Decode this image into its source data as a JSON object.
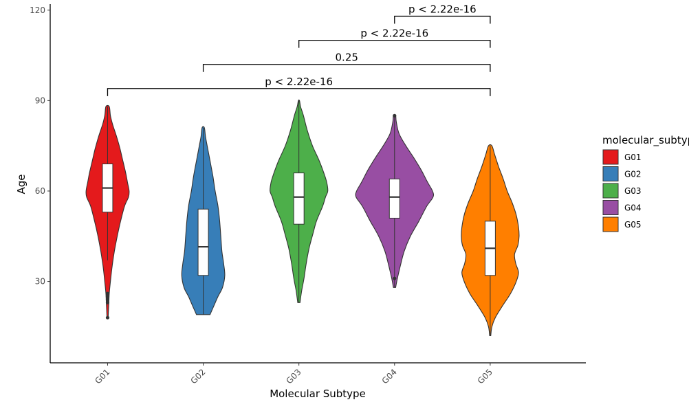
{
  "chart_data": {
    "type": "violin",
    "xlabel": "Molecular Subtype",
    "ylabel": "Age",
    "ylim": [
      3,
      122
    ],
    "yticks": [
      30,
      60,
      90,
      120
    ],
    "grid": false,
    "legend_position": "right",
    "legend_title": "molecular_subtype",
    "categories": [
      "G01",
      "G02",
      "G03",
      "G04",
      "G05"
    ],
    "groups": [
      {
        "name": "G01",
        "color": "#E41A1C",
        "min": 18,
        "max": 88,
        "box": {
          "q1": 53,
          "median": 61,
          "q3": 69
        },
        "whisker": [
          37,
          88
        ],
        "outliers": [
          18,
          23,
          24,
          25,
          26
        ],
        "density": [
          [
            18,
            1
          ],
          [
            22,
            2
          ],
          [
            26,
            3
          ],
          [
            30,
            5
          ],
          [
            35,
            8
          ],
          [
            40,
            12
          ],
          [
            45,
            17
          ],
          [
            50,
            23
          ],
          [
            55,
            30
          ],
          [
            58,
            37
          ],
          [
            60,
            38
          ],
          [
            63,
            35
          ],
          [
            66,
            32
          ],
          [
            70,
            27
          ],
          [
            74,
            22
          ],
          [
            78,
            16
          ],
          [
            82,
            9
          ],
          [
            85,
            5
          ],
          [
            88,
            3
          ]
        ]
      },
      {
        "name": "G02",
        "color": "#377EB8",
        "min": 19,
        "max": 81,
        "box": {
          "q1": 32,
          "median": 41.5,
          "q3": 54
        },
        "whisker": [
          19,
          81
        ],
        "outliers": [],
        "density": [
          [
            19,
            12
          ],
          [
            22,
            19
          ],
          [
            25,
            26
          ],
          [
            28,
            34
          ],
          [
            32,
            38
          ],
          [
            36,
            36
          ],
          [
            40,
            33
          ],
          [
            45,
            31
          ],
          [
            50,
            29
          ],
          [
            55,
            26
          ],
          [
            60,
            21
          ],
          [
            65,
            17
          ],
          [
            70,
            12
          ],
          [
            75,
            7
          ],
          [
            78,
            4
          ],
          [
            81,
            2
          ]
        ]
      },
      {
        "name": "G03",
        "color": "#4DAF4A",
        "min": 23,
        "max": 90,
        "box": {
          "q1": 49,
          "median": 58,
          "q3": 66
        },
        "whisker": [
          23,
          90
        ],
        "outliers": [],
        "density": [
          [
            23,
            2
          ],
          [
            27,
            5
          ],
          [
            31,
            9
          ],
          [
            36,
            13
          ],
          [
            41,
            18
          ],
          [
            46,
            25
          ],
          [
            50,
            31
          ],
          [
            55,
            42
          ],
          [
            58,
            47
          ],
          [
            60,
            51
          ],
          [
            63,
            49
          ],
          [
            66,
            44
          ],
          [
            70,
            36
          ],
          [
            75,
            24
          ],
          [
            80,
            15
          ],
          [
            85,
            8
          ],
          [
            88,
            3
          ],
          [
            90,
            1
          ]
        ]
      },
      {
        "name": "G04",
        "color": "#984EA3",
        "min": 28,
        "max": 85,
        "box": {
          "q1": 51,
          "median": 58,
          "q3": 64
        },
        "whisker": [
          28,
          85
        ],
        "outliers": [
          31,
          85
        ],
        "density": [
          [
            28,
            2
          ],
          [
            31,
            5
          ],
          [
            35,
            10
          ],
          [
            40,
            17
          ],
          [
            45,
            28
          ],
          [
            50,
            43
          ],
          [
            55,
            57
          ],
          [
            58,
            68
          ],
          [
            60,
            67
          ],
          [
            63,
            58
          ],
          [
            67,
            47
          ],
          [
            71,
            34
          ],
          [
            75,
            20
          ],
          [
            79,
            8
          ],
          [
            83,
            3
          ],
          [
            85,
            2
          ]
        ]
      },
      {
        "name": "G05",
        "color": "#FF7F00",
        "min": 12,
        "max": 75,
        "box": {
          "q1": 32,
          "median": 41,
          "q3": 50
        },
        "whisker": [
          12,
          75
        ],
        "outliers": [],
        "density": [
          [
            12,
            1
          ],
          [
            15,
            3
          ],
          [
            18,
            9
          ],
          [
            22,
            22
          ],
          [
            26,
            36
          ],
          [
            30,
            46
          ],
          [
            33,
            50
          ],
          [
            36,
            45
          ],
          [
            39,
            43
          ],
          [
            42,
            49
          ],
          [
            45,
            51
          ],
          [
            48,
            50
          ],
          [
            52,
            46
          ],
          [
            56,
            39
          ],
          [
            60,
            30
          ],
          [
            64,
            23
          ],
          [
            68,
            15
          ],
          [
            72,
            8
          ],
          [
            75,
            3
          ]
        ]
      }
    ],
    "comparisons": [
      {
        "from": "G01",
        "to": "G05",
        "y": 94,
        "label": "p < 2.22e-16"
      },
      {
        "from": "G02",
        "to": "G05",
        "y": 102,
        "label": "0.25"
      },
      {
        "from": "G03",
        "to": "G05",
        "y": 110,
        "label": "p < 2.22e-16"
      },
      {
        "from": "G04",
        "to": "G05",
        "y": 118,
        "label": "p < 2.22e-16"
      }
    ]
  }
}
